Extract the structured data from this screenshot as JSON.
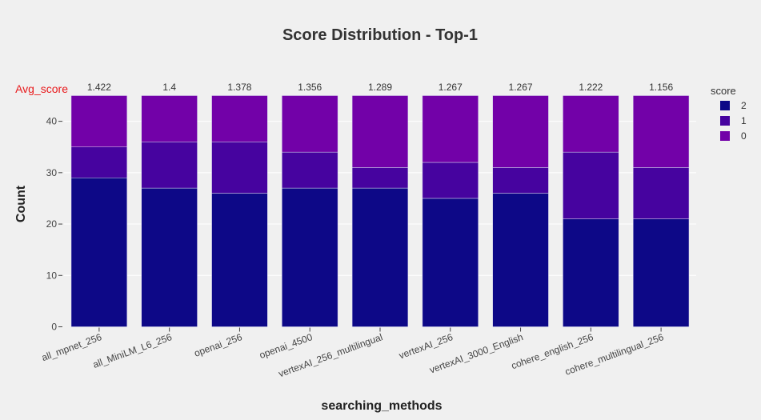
{
  "chart_data": {
    "type": "bar",
    "stacked": true,
    "title": "Score Distribution - Top-1",
    "xlabel": "searching_methods",
    "ylabel": "Count",
    "ylim": [
      0,
      45
    ],
    "yticks": [
      0,
      10,
      20,
      30,
      40
    ],
    "grid": true,
    "legend": {
      "title": "score",
      "placement": "top-right"
    },
    "categories": [
      "all_mpnet_256",
      "all_MiniLM_L6_256",
      "openai_256",
      "openai_4500",
      "vertexAI_256_multilingual",
      "vertexAI_256",
      "vertexAI_3000_English",
      "cohere_english_256",
      "cohere_multilingual_256"
    ],
    "series": [
      {
        "name": "2",
        "color": "#0d0887",
        "values": [
          29,
          27,
          26,
          27,
          27,
          25,
          26,
          21,
          21
        ]
      },
      {
        "name": "1",
        "color": "#46039f",
        "values": [
          6,
          9,
          10,
          7,
          4,
          7,
          5,
          13,
          10
        ]
      },
      {
        "name": "0",
        "color": "#7201a8",
        "values": [
          10,
          9,
          9,
          11,
          14,
          13,
          14,
          11,
          14
        ]
      }
    ],
    "legend_order": [
      "2",
      "1",
      "0"
    ],
    "annotation_label": "Avg_score",
    "annotation_color": "#e8191b",
    "avg_scores": [
      "1.422",
      "1.4",
      "1.378",
      "1.356",
      "1.289",
      "1.267",
      "1.267",
      "1.222",
      "1.156"
    ]
  }
}
